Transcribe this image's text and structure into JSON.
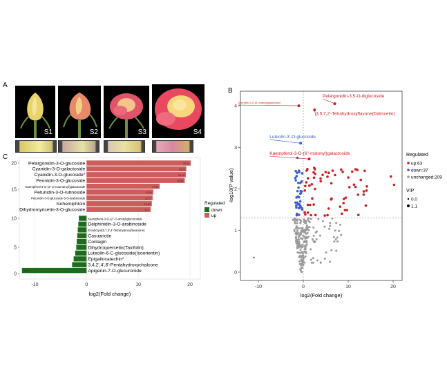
{
  "panels": {
    "a": "A",
    "b": "B",
    "c": "C"
  },
  "photos": [
    {
      "stage": "S1",
      "bg": "#000000",
      "petal": "#e8d46a",
      "center": "#f1e79a",
      "swatch": "#d8c868"
    },
    {
      "stage": "S2",
      "bg": "#000000",
      "petal": "#e88a6a",
      "center": "#f2d184",
      "swatch": "#c9a9a0"
    },
    {
      "stage": "S3",
      "bg": "#000000",
      "petal": "#e0546a",
      "center": "#f5c48a",
      "swatch": "#d9c8b8"
    },
    {
      "stage": "S4",
      "bg": "#000000",
      "petal": "#e84860",
      "center": "#f7d77a",
      "swatch": "#e7a8b6"
    }
  ],
  "chart_data": [
    {
      "type": "bar",
      "orientation": "horizontal",
      "categories": [
        "Pelargonidin-3-O-glucoside",
        "Cyanidin-3-O-galactoside",
        "Cyanidin-3-O-glucoside*",
        "Peonidin-3-O-glucoside",
        "Kaempferol-3-O-(2''-p-Coumaroyl)galactoside",
        "Petunidin-3-O-rutinoside",
        "Petunidin-3-O-glucoside-5-O-arabinoside",
        "Isohemiphloin",
        "Dihydromyricetin-3-O-glucoside",
        "Kaempferol-3-O-(2''-O-acetyl)glucuronide",
        "Delphinidin-3-O-arabinoside",
        "Eriodictyol(5,7,3',4'-Tetrahydroxyflavanone)",
        "Casuarictin",
        "Corilagin",
        "Dihydroquercetin(Taxifolin)",
        "Luteolin-6-C-glucoside(Isoorientin)",
        "Epigallocatechin*",
        "3,4,2',4',6'-Pentahydroxychalcone",
        "Apigenin-7-O-glucuronide"
      ],
      "values": [
        20.13,
        19.29,
        19.19,
        18.98,
        14.13,
        12.91,
        12.77,
        12.62,
        12.4,
        -1.5,
        -1.6,
        -1.7,
        -1.8,
        -1.9,
        -2.0,
        -2.2,
        -2.5,
        -2.8,
        -12.5
      ],
      "value_labels": [
        "20.13",
        "19.29",
        "19.19",
        "18.98",
        "14.13",
        "12.91",
        "12.77",
        "12.62",
        "12.4",
        "",
        "",
        "",
        "",
        "",
        "",
        "",
        "",
        "",
        "-12.5"
      ],
      "xlabel": "log2(Fold change)",
      "xticks": [
        "-10",
        "0",
        "10",
        "20"
      ],
      "xlim": [
        -13,
        22
      ],
      "yticks": [
        "0",
        "5",
        "10",
        "15",
        "20"
      ],
      "legend": {
        "title": "Regulated",
        "entries": [
          "down",
          "up"
        ],
        "placement": "right"
      },
      "colors": {
        "up": "#cd5c5c",
        "down": "#1e6b1e"
      }
    },
    {
      "type": "scatter",
      "xlabel": "log2(Fold change)",
      "ylabel": "-log10(P value)",
      "xticks": [
        "-10",
        "0",
        "10",
        "20"
      ],
      "yticks": [
        "0",
        "1",
        "2",
        "3",
        "4"
      ],
      "xlim": [
        -14,
        22
      ],
      "ylim": [
        -0.2,
        4.35
      ],
      "thresholds": {
        "x": 0,
        "y": 1.3
      },
      "legend": {
        "regulated_title": "Regulated",
        "regulated": [
          "up:63",
          "down:37",
          "unchanged:209"
        ],
        "vip_title": "VIP",
        "vip": [
          "0.0",
          "1.1"
        ],
        "placement": "right"
      },
      "colors": {
        "up": "#cc1f1f",
        "down": "#3a5fcd",
        "unchanged": "#9a9a9a"
      },
      "annotations": [
        {
          "text": "Pelargonidin-3,5-O-diglucoside",
          "x": 7,
          "y": 4.05,
          "lx": 4.3,
          "ly": 4.2,
          "color": "#cc1f1f"
        },
        {
          "text": "Quercetin-3-O-(6''-malonyl)galactoside",
          "x": -1,
          "y": 4.0,
          "lx": -14.5,
          "ly": 4.05,
          "color": "#cc1f1f",
          "small": true
        },
        {
          "text": "3,5,7,2'-Tetrahydroxyflavone(Datiscetin)",
          "x": 2.5,
          "y": 3.9,
          "lx": 2.8,
          "ly": 3.78,
          "color": "#cc1f1f"
        },
        {
          "text": "Luteolin-3'-O-glucoside",
          "x": -0.6,
          "y": 3.1,
          "lx": -7.5,
          "ly": 3.22,
          "color": "#3a5fcd"
        },
        {
          "text": "Kaempferol-3-O-(6''-malonyl)galactoside",
          "x": 1.3,
          "y": 2.72,
          "lx": -7.5,
          "ly": 2.82,
          "color": "#cc1f1f"
        }
      ]
    }
  ]
}
